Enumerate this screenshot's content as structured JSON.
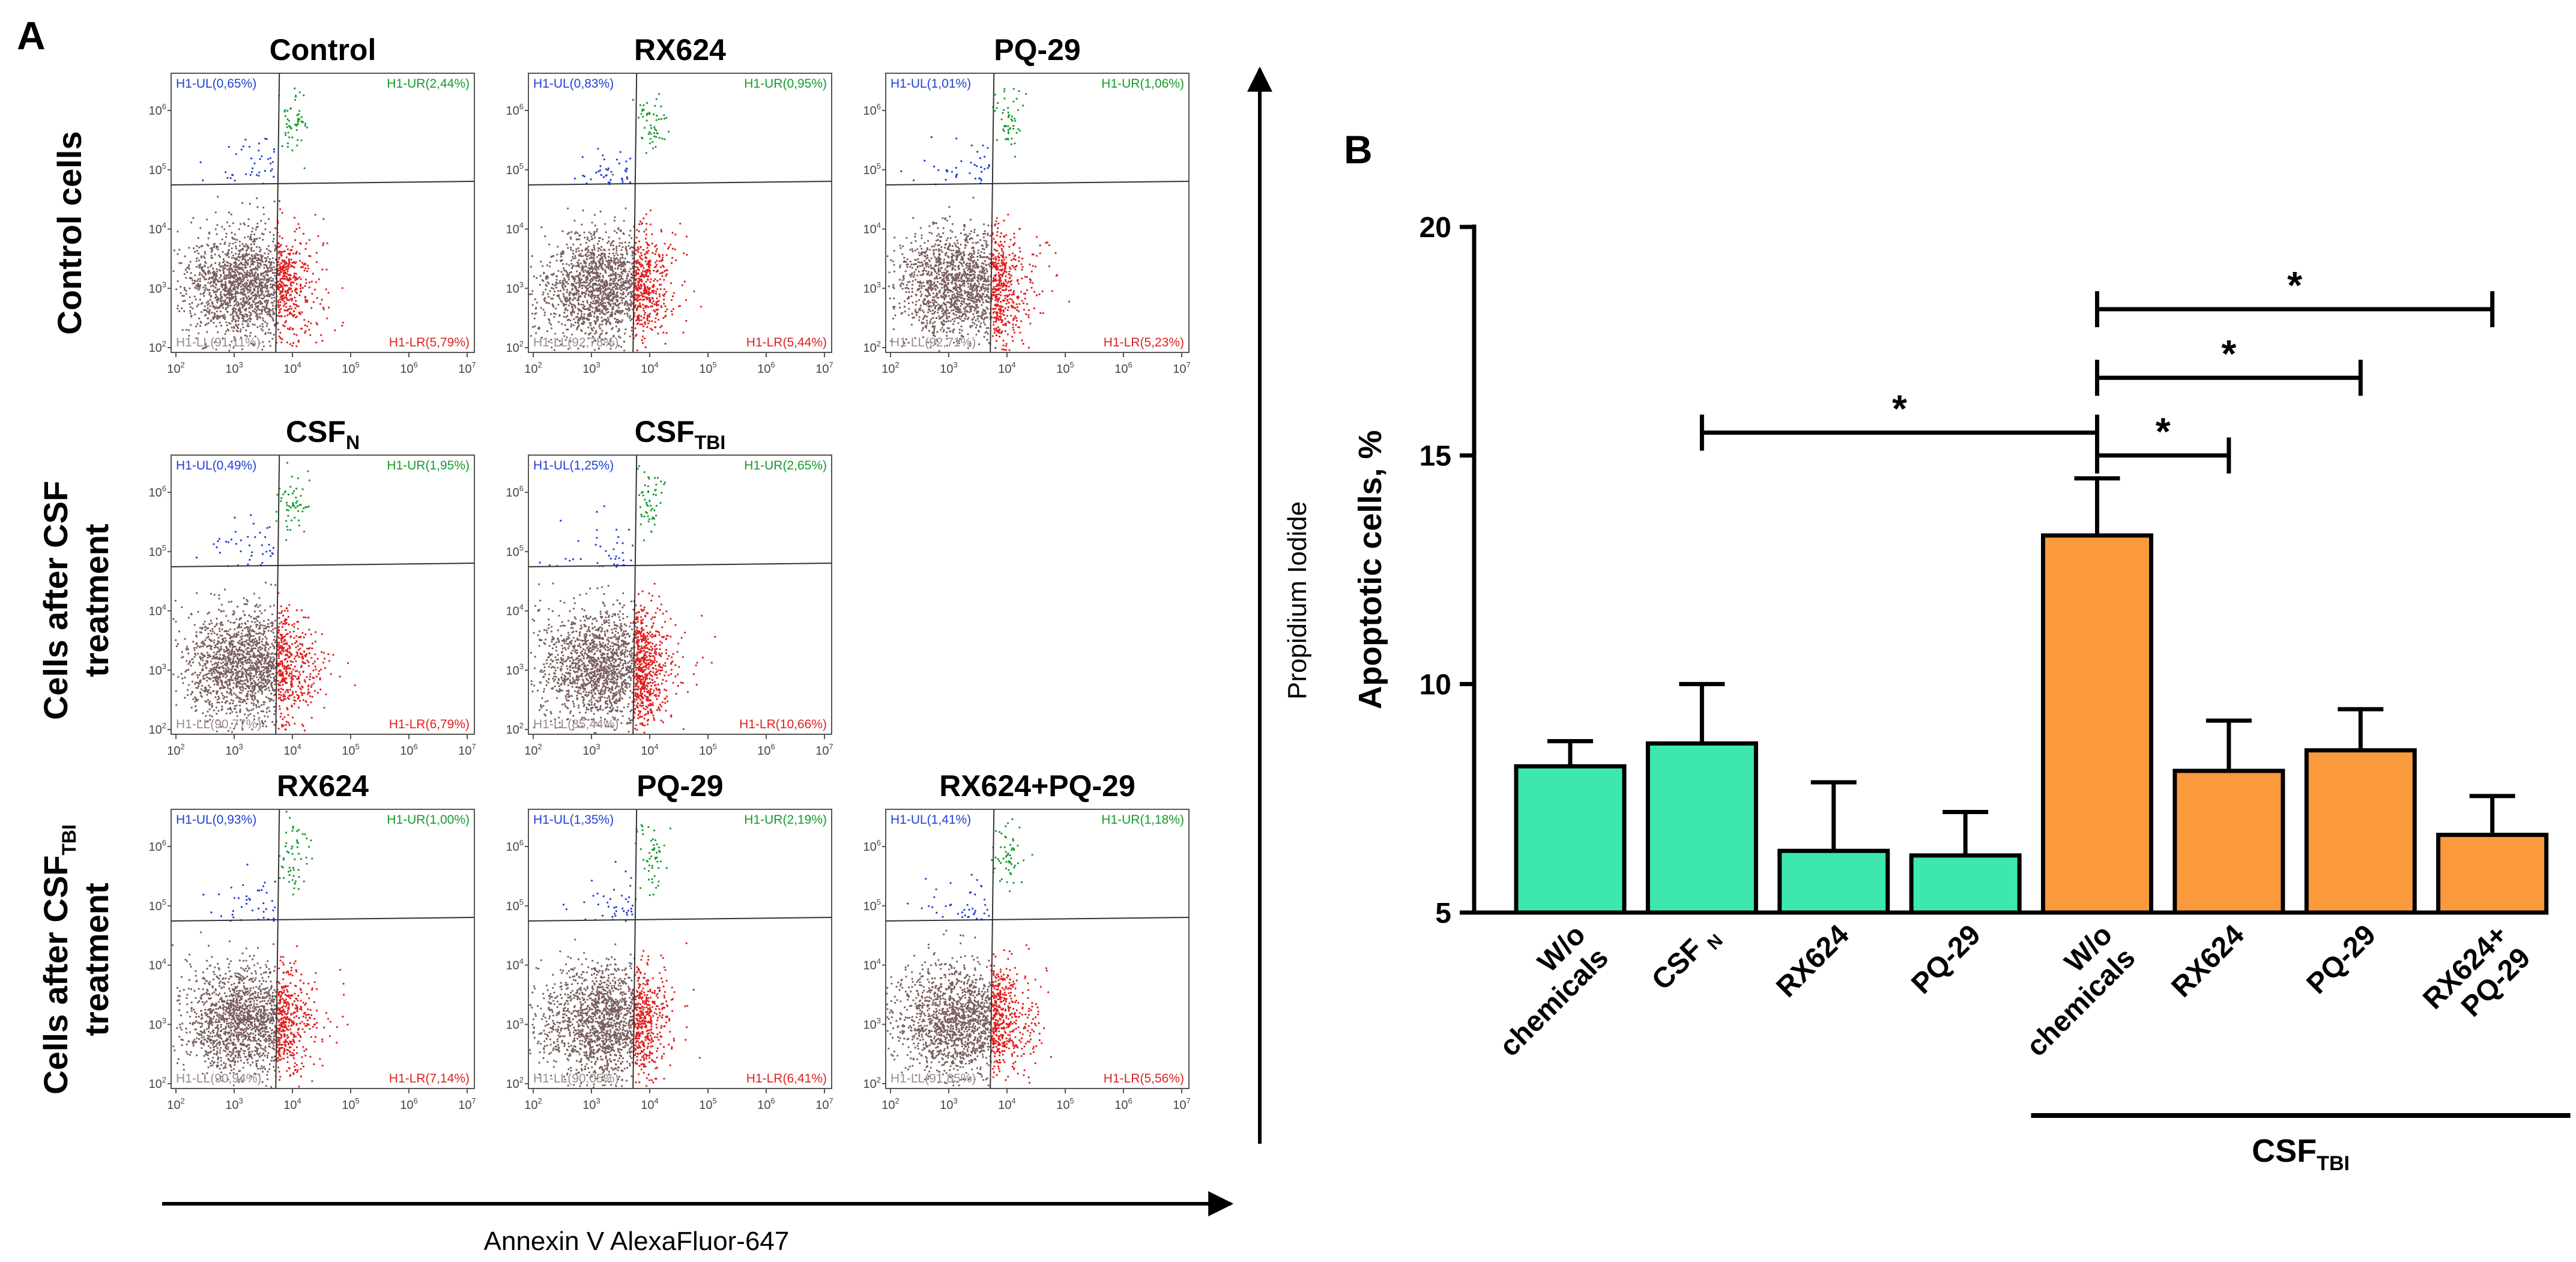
{
  "figure": {
    "panel_a_letter": "A",
    "panel_b_letter": "B",
    "flow_axis_x_label": "Annexin V AlexaFluor-647",
    "flow_axis_y_label": "Propidium Iodide",
    "row_labels": [
      {
        "lines": [
          "Control cells"
        ],
        "sub": ""
      },
      {
        "lines": [
          "Cells after CSF",
          "treatment"
        ],
        "sub": ""
      },
      {
        "lines": [
          "Cells after CSF",
          "treatment"
        ],
        "sub": "TBI"
      }
    ],
    "tick_base": "10",
    "tick_exponents": [
      "2",
      "3",
      "4",
      "5",
      "6",
      "7"
    ],
    "colors": {
      "UL": "#1f3fd6",
      "UR": "#159a2c",
      "LL": "#7a5e5e",
      "LL_label": "#9a8a8a",
      "LR": "#e02020",
      "bar_csf_n": "#3ee8ac",
      "bar_csf_tbi": "#fa9a3c"
    }
  },
  "flow_plots": [
    {
      "title": "Control",
      "title_sub": "",
      "ul": "H1-UL(0,65%)",
      "ur": "H1-UR(2,44%)",
      "ll": "H1-LL(91,11%)",
      "lr": "H1-LR(5,79%)"
    },
    {
      "title": "RX624",
      "title_sub": "",
      "ul": "H1-UL(0,83%)",
      "ur": "H1-UR(0,95%)",
      "ll": "H1-LL(92,78%)",
      "lr": "H1-LR(5,44%)"
    },
    {
      "title": "PQ-29",
      "title_sub": "",
      "ul": "H1-UL(1,01%)",
      "ur": "H1-UR(1,06%)",
      "ll": "H1-LL(92,71%)",
      "lr": "H1-LR(5,23%)"
    },
    {
      "title": "CSF",
      "title_sub": "N",
      "ul": "H1-UL(0,49%)",
      "ur": "H1-UR(1,95%)",
      "ll": "H1-LL(90,77%)",
      "lr": "H1-LR(6,79%)"
    },
    {
      "title": "CSF",
      "title_sub": "TBI",
      "ul": "H1-UL(1,25%)",
      "ur": "H1-UR(2,65%)",
      "ll": "H1-LL(85,44%)",
      "lr": "H1-LR(10,66%)"
    },
    {
      "title": "RX624",
      "title_sub": "",
      "ul": "H1-UL(0,93%)",
      "ur": "H1-UR(1,00%)",
      "ll": "H1-LL(90,94%)",
      "lr": "H1-LR(7,14%)"
    },
    {
      "title": "PQ-29",
      "title_sub": "",
      "ul": "H1-UL(1,35%)",
      "ur": "H1-UR(2,19%)",
      "ll": "H1-LL(90,05%)",
      "lr": "H1-LR(6,41%)"
    },
    {
      "title": "RX624+PQ-29",
      "title_sub": "",
      "ul": "H1-UL(1,41%)",
      "ur": "H1-UR(1,18%)",
      "ll": "H1-LL(91,85%)",
      "lr": "H1-LR(5,56%)"
    }
  ],
  "chart_data": {
    "type": "bar",
    "ylabel": "Apoptotic cells, %",
    "ylim": [
      5,
      20
    ],
    "yticks": [
      5,
      10,
      15,
      20
    ],
    "categories": [
      {
        "lines": [
          "W/o",
          "chemicals"
        ],
        "sub": ""
      },
      {
        "lines": [
          "CSF"
        ],
        "sub": "N"
      },
      {
        "lines": [
          "RX624"
        ],
        "sub": ""
      },
      {
        "lines": [
          "PQ-29"
        ],
        "sub": ""
      },
      {
        "lines": [
          "W/o",
          "chemicals"
        ],
        "sub": ""
      },
      {
        "lines": [
          "RX624"
        ],
        "sub": ""
      },
      {
        "lines": [
          "PQ-29"
        ],
        "sub": ""
      },
      {
        "lines": [
          "RX624+",
          "PQ-29"
        ],
        "sub": ""
      }
    ],
    "values": [
      8.2,
      8.7,
      6.35,
      6.25,
      13.25,
      8.1,
      8.55,
      6.7
    ],
    "errors": [
      0.55,
      1.3,
      1.5,
      0.95,
      1.25,
      1.1,
      0.9,
      0.85
    ],
    "groups": [
      "normal",
      "normal",
      "normal",
      "normal",
      "tbi",
      "tbi",
      "tbi",
      "tbi"
    ],
    "group_label": {
      "text": "CSF",
      "sub": "TBI",
      "from_index": 4,
      "to_index": 7
    },
    "significance": [
      {
        "from": 1,
        "to": 4,
        "y": 15.5,
        "label": "*"
      },
      {
        "from": 4,
        "to": 5,
        "y": 15.0,
        "label": "*"
      },
      {
        "from": 4,
        "to": 6,
        "y": 16.7,
        "label": "*"
      },
      {
        "from": 4,
        "to": 7,
        "y": 18.2,
        "label": "*"
      }
    ]
  }
}
